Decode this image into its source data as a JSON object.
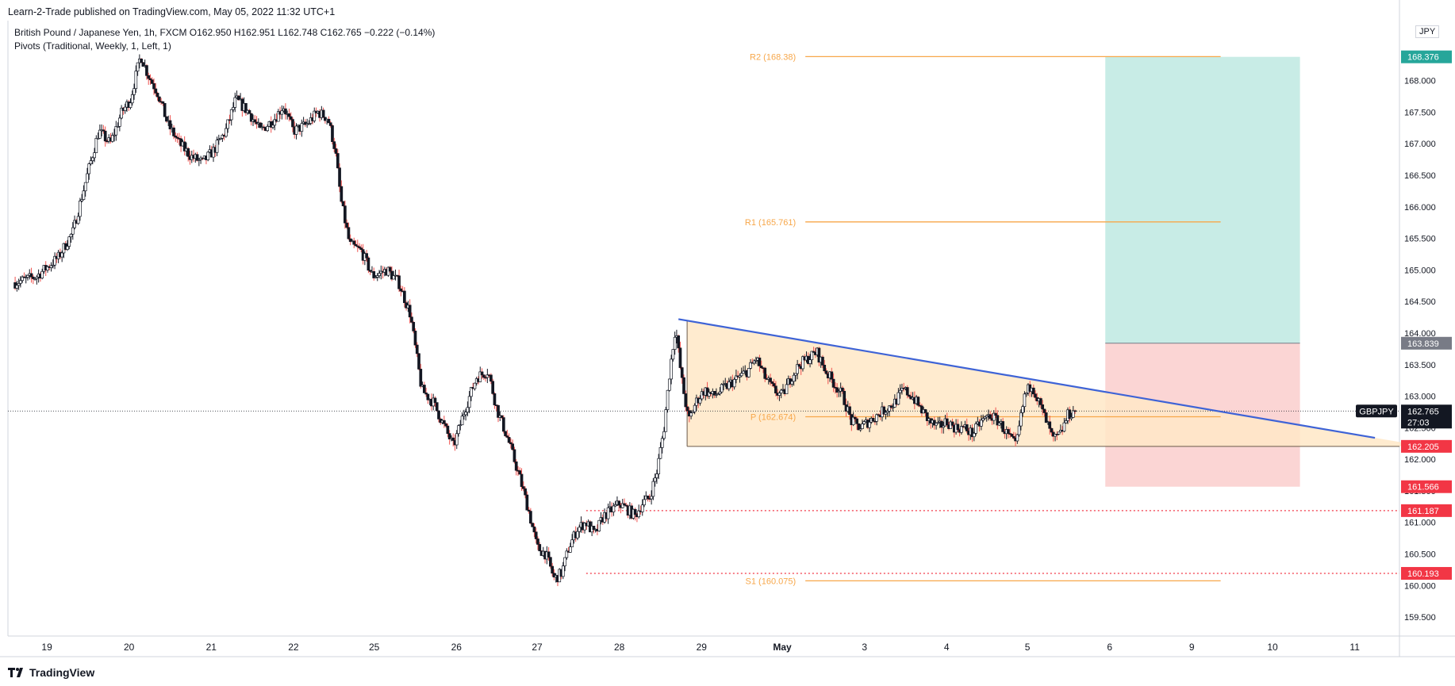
{
  "header": {
    "publisher": "Learn-2-Trade published on TradingView.com, May 05, 2022 11:32 UTC+1",
    "symbol_line": "British Pound / Japanese Yen, 1h, FXCM  O162.950  H162.951  L162.748  C162.765  −0.222 (−0.14%)",
    "indicator_line": "Pivots (Traditional, Weekly, 1, Left, 1)",
    "currency": "JPY"
  },
  "branding": {
    "name": "TradingView"
  },
  "colors": {
    "up": "#26a69a",
    "down": "#ef5350",
    "candle": "#131722",
    "pivot": "#f7a74a",
    "trendline": "#3e63d6",
    "triangle_fill": "#ffe7c7",
    "profit": "#c8ece6",
    "loss": "#fbd5d4",
    "red_level": "#f23645",
    "grid": "#e0e3eb"
  },
  "chart_data": {
    "type": "candlestick",
    "xlabel": "",
    "ylabel": "",
    "ylim": [
      159.2,
      168.95
    ],
    "y_ticks": [
      "159.500",
      "160.000",
      "160.500",
      "161.000",
      "161.500",
      "162.000",
      "162.500",
      "163.000",
      "163.500",
      "164.000",
      "164.500",
      "165.000",
      "165.500",
      "166.000",
      "166.500",
      "167.000",
      "167.500",
      "168.000"
    ],
    "x_ticks": [
      {
        "label": "19",
        "t": 2.2
      },
      {
        "label": "20",
        "t": 7.9
      },
      {
        "label": "21",
        "t": 13.6
      },
      {
        "label": "22",
        "t": 19.3
      },
      {
        "label": "25",
        "t": 24.9
      },
      {
        "label": "26",
        "t": 30.6
      },
      {
        "label": "27",
        "t": 36.2
      },
      {
        "label": "28",
        "t": 41.9
      },
      {
        "label": "29",
        "t": 47.6
      },
      {
        "label": "May",
        "t": 53.2
      },
      {
        "label": "3",
        "t": 58.9
      },
      {
        "label": "4",
        "t": 64.6
      },
      {
        "label": "5",
        "t": 70.2
      },
      {
        "label": "6",
        "t": 75.9
      },
      {
        "label": "9",
        "t": 81.6
      },
      {
        "label": "10",
        "t": 87.2
      },
      {
        "label": "11",
        "t": 92.9
      }
    ],
    "close_series": [
      {
        "t": 0,
        "v": 164.8
      },
      {
        "t": 1.5,
        "v": 164.9
      },
      {
        "t": 3.0,
        "v": 165.2
      },
      {
        "t": 4.0,
        "v": 165.6
      },
      {
        "t": 5.0,
        "v": 166.5
      },
      {
        "t": 5.8,
        "v": 167.2
      },
      {
        "t": 6.6,
        "v": 167.0
      },
      {
        "t": 7.4,
        "v": 167.5
      },
      {
        "t": 8.0,
        "v": 167.7
      },
      {
        "t": 8.7,
        "v": 168.4
      },
      {
        "t": 9.2,
        "v": 168.1
      },
      {
        "t": 9.9,
        "v": 167.8
      },
      {
        "t": 10.6,
        "v": 167.3
      },
      {
        "t": 11.4,
        "v": 167.0
      },
      {
        "t": 12.2,
        "v": 166.8
      },
      {
        "t": 13.0,
        "v": 166.7
      },
      {
        "t": 13.8,
        "v": 166.9
      },
      {
        "t": 14.6,
        "v": 167.2
      },
      {
        "t": 15.3,
        "v": 167.7
      },
      {
        "t": 16.2,
        "v": 167.5
      },
      {
        "t": 17.0,
        "v": 167.2
      },
      {
        "t": 18.0,
        "v": 167.4
      },
      {
        "t": 18.6,
        "v": 167.6
      },
      {
        "t": 19.3,
        "v": 167.2
      },
      {
        "t": 20.2,
        "v": 167.3
      },
      {
        "t": 21.0,
        "v": 167.5
      },
      {
        "t": 21.7,
        "v": 167.4
      },
      {
        "t": 22.2,
        "v": 166.9
      },
      {
        "t": 22.6,
        "v": 166.1
      },
      {
        "t": 23.2,
        "v": 165.4
      },
      {
        "t": 24.0,
        "v": 165.3
      },
      {
        "t": 24.8,
        "v": 164.9
      },
      {
        "t": 25.8,
        "v": 165.0
      },
      {
        "t": 26.6,
        "v": 164.8
      },
      {
        "t": 27.4,
        "v": 164.3
      },
      {
        "t": 28.2,
        "v": 163.1
      },
      {
        "t": 29.0,
        "v": 162.9
      },
      {
        "t": 29.8,
        "v": 162.5
      },
      {
        "t": 30.4,
        "v": 162.2
      },
      {
        "t": 31.2,
        "v": 162.8
      },
      {
        "t": 32.0,
        "v": 163.3
      },
      {
        "t": 32.8,
        "v": 163.4
      },
      {
        "t": 33.4,
        "v": 162.8
      },
      {
        "t": 34.2,
        "v": 162.3
      },
      {
        "t": 35.0,
        "v": 161.7
      },
      {
        "t": 35.6,
        "v": 161.2
      },
      {
        "t": 36.2,
        "v": 160.6
      },
      {
        "t": 36.8,
        "v": 160.5
      },
      {
        "t": 37.4,
        "v": 160.1
      },
      {
        "t": 37.9,
        "v": 160.2
      },
      {
        "t": 38.4,
        "v": 160.6
      },
      {
        "t": 39.0,
        "v": 160.9
      },
      {
        "t": 39.6,
        "v": 161.0
      },
      {
        "t": 40.2,
        "v": 160.8
      },
      {
        "t": 40.8,
        "v": 161.1
      },
      {
        "t": 41.4,
        "v": 161.2
      },
      {
        "t": 41.9,
        "v": 161.3
      },
      {
        "t": 42.5,
        "v": 161.2
      },
      {
        "t": 43.0,
        "v": 161.1
      },
      {
        "t": 43.5,
        "v": 161.3
      },
      {
        "t": 44.0,
        "v": 161.4
      },
      {
        "t": 44.5,
        "v": 161.8
      },
      {
        "t": 45.0,
        "v": 162.5
      },
      {
        "t": 45.4,
        "v": 163.4
      },
      {
        "t": 45.8,
        "v": 164.1
      },
      {
        "t": 46.2,
        "v": 163.3
      },
      {
        "t": 46.7,
        "v": 162.6
      },
      {
        "t": 47.2,
        "v": 162.9
      },
      {
        "t": 47.8,
        "v": 163.1
      },
      {
        "t": 48.4,
        "v": 163.0
      },
      {
        "t": 49.0,
        "v": 163.1
      },
      {
        "t": 49.6,
        "v": 163.2
      },
      {
        "t": 50.2,
        "v": 163.3
      },
      {
        "t": 50.8,
        "v": 163.4
      },
      {
        "t": 51.4,
        "v": 163.6
      },
      {
        "t": 52.0,
        "v": 163.3
      },
      {
        "t": 52.6,
        "v": 163.1
      },
      {
        "t": 53.2,
        "v": 163.0
      },
      {
        "t": 53.8,
        "v": 163.3
      },
      {
        "t": 54.4,
        "v": 163.5
      },
      {
        "t": 55.0,
        "v": 163.6
      },
      {
        "t": 55.6,
        "v": 163.7
      },
      {
        "t": 56.2,
        "v": 163.4
      },
      {
        "t": 56.8,
        "v": 163.2
      },
      {
        "t": 57.4,
        "v": 163.0
      },
      {
        "t": 58.0,
        "v": 162.6
      },
      {
        "t": 58.6,
        "v": 162.5
      },
      {
        "t": 59.2,
        "v": 162.6
      },
      {
        "t": 59.8,
        "v": 162.7
      },
      {
        "t": 60.4,
        "v": 162.8
      },
      {
        "t": 61.0,
        "v": 162.9
      },
      {
        "t": 61.6,
        "v": 163.1
      },
      {
        "t": 62.2,
        "v": 163.0
      },
      {
        "t": 62.8,
        "v": 162.8
      },
      {
        "t": 63.4,
        "v": 162.6
      },
      {
        "t": 64.0,
        "v": 162.5
      },
      {
        "t": 64.6,
        "v": 162.6
      },
      {
        "t": 65.2,
        "v": 162.5
      },
      {
        "t": 65.8,
        "v": 162.5
      },
      {
        "t": 66.4,
        "v": 162.4
      },
      {
        "t": 67.0,
        "v": 162.6
      },
      {
        "t": 67.6,
        "v": 162.7
      },
      {
        "t": 68.2,
        "v": 162.6
      },
      {
        "t": 68.8,
        "v": 162.4
      },
      {
        "t": 69.4,
        "v": 162.2
      },
      {
        "t": 70.0,
        "v": 163.0
      },
      {
        "t": 70.5,
        "v": 163.2
      },
      {
        "t": 71.0,
        "v": 162.9
      },
      {
        "t": 71.5,
        "v": 162.6
      },
      {
        "t": 72.0,
        "v": 162.3
      },
      {
        "t": 72.5,
        "v": 162.4
      },
      {
        "t": 73.0,
        "v": 162.7
      },
      {
        "t": 73.5,
        "v": 162.765
      }
    ],
    "annotations": {
      "pivot_levels": [
        {
          "label": "R2 (168.38)",
          "value": 168.38
        },
        {
          "label": "R1 (165.761)",
          "value": 165.761
        },
        {
          "label": "P (162.674)",
          "value": 162.674
        },
        {
          "label": "S1 (160.075)",
          "value": 160.075
        }
      ],
      "pivot_t_range": [
        54.8,
        83.6
      ],
      "descending_trendline": {
        "t1": 46.0,
        "v1": 164.22,
        "t2": 94.3,
        "v2": 162.34
      },
      "triangle_support_level": 162.205,
      "triangle_support_t": [
        46.6,
        97.0
      ],
      "red_dotted_levels": [
        {
          "value": 161.187,
          "t_start": 39.6
        },
        {
          "value": 160.193,
          "t_start": 39.6
        }
      ],
      "position_box": {
        "t_start": 75.6,
        "t_end": 89.1,
        "take_profit": 168.376,
        "entry": 163.839,
        "stop": 161.566
      }
    },
    "price_labels": [
      {
        "text": "168.376",
        "value": 168.376,
        "color": "#26a69a"
      },
      {
        "text": "163.839",
        "value": 163.839,
        "color": "#787b86"
      },
      {
        "text": "162.205",
        "value": 162.205,
        "color": "#f23645"
      },
      {
        "text": "161.566",
        "value": 161.566,
        "color": "#f23645"
      },
      {
        "text": "161.187",
        "value": 161.187,
        "color": "#f23645"
      },
      {
        "text": "160.193",
        "value": 160.193,
        "color": "#f23645"
      }
    ],
    "last_price": {
      "symbol": "GBPJPY",
      "value": 162.765,
      "text": "162.765",
      "countdown": "27:03"
    }
  }
}
